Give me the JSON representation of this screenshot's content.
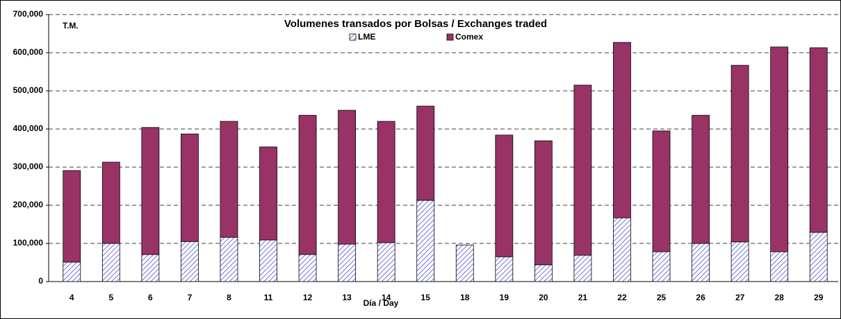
{
  "chart_data": {
    "type": "stacked_bar",
    "title": "Volumenes transados por Bolsas / Exchanges traded",
    "ylabel": "T.M.",
    "xlabel": "Día / Day",
    "categories": [
      "4",
      "5",
      "6",
      "7",
      "8",
      "11",
      "12",
      "13",
      "14",
      "15",
      "18",
      "19",
      "20",
      "21",
      "22",
      "25",
      "26",
      "27",
      "28",
      "29"
    ],
    "series": [
      {
        "name": "LME",
        "color": "#7070e0",
        "hatch": true,
        "values": [
          51000,
          100000,
          71000,
          105000,
          116000,
          109000,
          71000,
          98000,
          102000,
          213000,
          96000,
          65000,
          44000,
          69000,
          167000,
          78000,
          100000,
          104000,
          78000,
          129000
        ]
      },
      {
        "name": "Comex",
        "color": "#993366",
        "values": [
          240000,
          213000,
          333000,
          282000,
          304000,
          244000,
          365000,
          351000,
          318000,
          247000,
          0,
          319000,
          325000,
          446000,
          460000,
          317000,
          336000,
          463000,
          537000,
          484000
        ]
      }
    ],
    "ylim": [
      0,
      700000
    ],
    "yticks": [
      0,
      {
        "value": 100000,
        "label": "100,000"
      },
      {
        "value": 200000,
        "label": "200,000"
      },
      {
        "value": 300000,
        "label": "300,000"
      },
      {
        "value": 400000,
        "label": "400,000"
      },
      {
        "value": 500000,
        "label": "500,000"
      },
      {
        "value": 600000,
        "label": "600,000"
      },
      {
        "value": 700000,
        "label": "700,000"
      }
    ],
    "grid": true
  }
}
